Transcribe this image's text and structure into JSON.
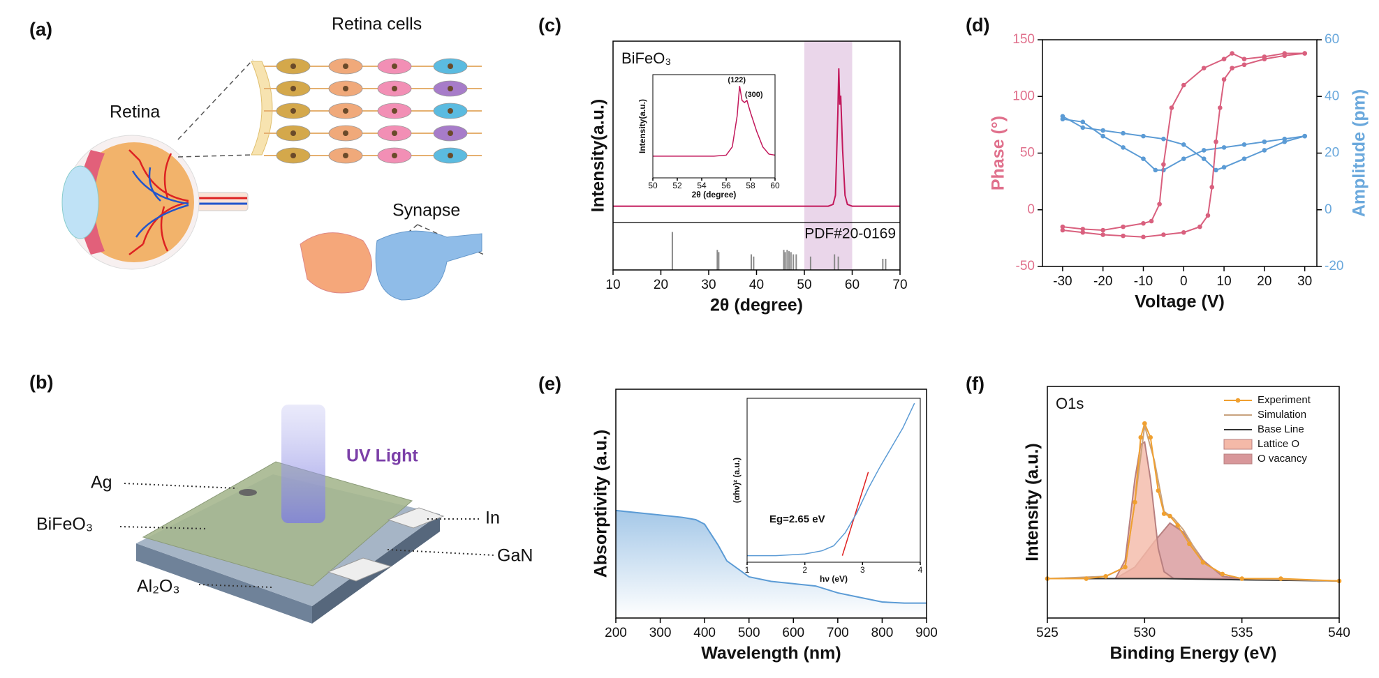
{
  "panel_a": {
    "label": "(a)",
    "retina_cells": "Retina cells",
    "retina": "Retina",
    "synapse": "Synapse"
  },
  "panel_b": {
    "label": "(b)",
    "uv_light": "UV Light",
    "ag": "Ag",
    "bifeo3": "BiFeO₃",
    "in": "In",
    "gan": "GaN",
    "al2o3": "Al₂O₃"
  },
  "chart_data": [
    {
      "type": "line",
      "panel_label": "(c)",
      "xlabel": "2θ (degree)",
      "ylabel": "Intensity(a.u.)",
      "xlim": [
        10,
        70
      ],
      "xticks": [
        10,
        20,
        30,
        40,
        50,
        60,
        70
      ],
      "ylim": [
        0,
        100
      ],
      "highlight": [
        50,
        60
      ],
      "highlight_color": "#ead6ea",
      "annotation": "BiFeO₃",
      "series": [
        {
          "color": "#c2185b",
          "x": [
            10,
            55,
            56,
            56.5,
            57,
            57.2,
            57.4,
            57.6,
            58,
            58.5,
            59,
            60,
            70
          ],
          "values": [
            9,
            9,
            10,
            15,
            60,
            85,
            65,
            70,
            40,
            15,
            10,
            9,
            9
          ]
        }
      ],
      "reference": {
        "label": "PDF#20-0169",
        "color": "#8a8a8a",
        "x": [
          22.4,
          31.8,
          32.1,
          38.9,
          39.4,
          45.7,
          46.0,
          46.4,
          46.8,
          47.2,
          47.7,
          48.3,
          51.3,
          56.3,
          57.1,
          66.4,
          67.0
        ],
        "values": [
          85,
          45,
          40,
          35,
          30,
          45,
          40,
          45,
          42,
          40,
          35,
          35,
          30,
          35,
          30,
          25,
          25
        ]
      },
      "inset": {
        "type": "line",
        "xlabel": "2θ (degree)",
        "ylabel": "Intensity(a.u.)",
        "xlim": [
          50,
          60
        ],
        "xticks": [
          50,
          52,
          54,
          56,
          58,
          60
        ],
        "ylim": [
          0,
          100
        ],
        "series": [
          {
            "color": "#c2185b",
            "x": [
              50,
              55,
              56,
              56.5,
              56.9,
              57.1,
              57.3,
              57.5,
              57.7,
              58,
              58.5,
              59,
              59.5,
              60
            ],
            "values": [
              21,
              21,
              22,
              30,
              60,
              89,
              75,
              73,
              75,
              63,
              45,
              30,
              23,
              22
            ]
          }
        ],
        "peak_labels": [
          {
            "label": "(122)",
            "x": 57.1
          },
          {
            "label": "(300)",
            "x": 57.7
          }
        ]
      }
    },
    {
      "type": "line",
      "panel_label": "(d)",
      "xlabel": "Voltage (V)",
      "ylabel": "Phase (°)",
      "y2label": "Amplitude (pm)",
      "ycolor": "#e0708c",
      "y2color": "#6aa8dc",
      "xlim": [
        -35,
        33
      ],
      "xticks": [
        -30,
        -20,
        -10,
        0,
        10,
        20,
        30
      ],
      "ylim": [
        -50,
        150
      ],
      "yticks": [
        -50,
        0,
        50,
        100,
        150
      ],
      "y2lim": [
        -20,
        60
      ],
      "y2ticks": [
        -20,
        0,
        20,
        40,
        60
      ],
      "series": [
        {
          "color": "#d9607e",
          "markers": true,
          "x": [
            -30,
            -25,
            -20,
            -15,
            -10,
            -5,
            0,
            4,
            6,
            7,
            8,
            9,
            10,
            12,
            15,
            20,
            25,
            30
          ],
          "values": [
            -18,
            -20,
            -22,
            -23,
            -24,
            -22,
            -20,
            -15,
            -5,
            20,
            60,
            90,
            115,
            125,
            128,
            133,
            136,
            138
          ]
        },
        {
          "color": "#d9607e",
          "markers": true,
          "x": [
            30,
            25,
            20,
            15,
            12,
            10,
            5,
            0,
            -3,
            -5,
            -6,
            -8,
            -10,
            -15,
            -20,
            -25,
            -30
          ],
          "values": [
            138,
            138,
            135,
            133,
            138,
            133,
            125,
            110,
            90,
            40,
            5,
            -10,
            -12,
            -15,
            -18,
            -17,
            -15
          ]
        },
        {
          "color": "#5b9bd5",
          "markers": true,
          "axis": "y2",
          "x": [
            -30,
            -25,
            -20,
            -15,
            -10,
            -7,
            -5,
            0,
            5,
            10,
            15,
            20,
            25,
            30
          ],
          "values": [
            32,
            31,
            26,
            22,
            18,
            14,
            14,
            18,
            21,
            22,
            23,
            24,
            25,
            26
          ]
        },
        {
          "color": "#5b9bd5",
          "markers": true,
          "axis": "y2",
          "x": [
            -30,
            -25,
            -20,
            -15,
            -10,
            -5,
            0,
            5,
            8,
            10,
            15,
            20,
            25,
            30
          ],
          "values": [
            33,
            29,
            28,
            27,
            26,
            25,
            23,
            18,
            14,
            15,
            18,
            21,
            24,
            26
          ]
        }
      ]
    },
    {
      "type": "line",
      "panel_label": "(e)",
      "xlabel": "Wavelength (nm)",
      "ylabel": "Absorptivity (a.u.)",
      "xlim": [
        200,
        900
      ],
      "xticks": [
        200,
        300,
        400,
        500,
        600,
        700,
        800,
        900
      ],
      "ylim": [
        0,
        100
      ],
      "series": [
        {
          "color": "#5b9bd5",
          "fill": "gradient",
          "x": [
            200,
            250,
            300,
            350,
            380,
            400,
            430,
            450,
            500,
            550,
            600,
            650,
            700,
            750,
            800,
            850,
            900
          ],
          "values": [
            47,
            46,
            45,
            44,
            43,
            41,
            32,
            25,
            18,
            16,
            15,
            14,
            11,
            9,
            7,
            6.5,
            6.5
          ]
        }
      ],
      "inset": {
        "type": "line",
        "xlabel": "hν (eV)",
        "ylabel": "(αhν)² (a.u.)",
        "xlim": [
          1,
          4
        ],
        "xticks": [
          1,
          2,
          3,
          4
        ],
        "ylim": [
          0,
          100
        ],
        "annotation": "Eg=2.65 eV",
        "series": [
          {
            "color": "#5b9bd5",
            "x": [
              1,
              1.5,
              2,
              2.3,
              2.5,
              2.7,
              2.9,
              3.1,
              3.3,
              3.5,
              3.7,
              3.9
            ],
            "values": [
              4,
              4,
              5,
              7,
              10,
              18,
              30,
              45,
              58,
              70,
              82,
              97
            ]
          },
          {
            "color": "#e02020",
            "x": [
              2.65,
              3.1
            ],
            "values": [
              4,
              55
            ]
          }
        ]
      }
    },
    {
      "type": "line",
      "panel_label": "(f)",
      "xlabel": "Binding Energy (eV)",
      "ylabel": "Intensity (a.u.)",
      "annotation": "O1s",
      "xlim": [
        525,
        540
      ],
      "xticks": [
        525,
        530,
        535,
        540
      ],
      "ylim": [
        0,
        100
      ],
      "legend": "upper right",
      "series": [
        {
          "name": "Experiment",
          "color": "#f0a030",
          "markers": true,
          "x": [
            525,
            527,
            528,
            529,
            529.5,
            529.8,
            530,
            530.3,
            530.7,
            531,
            531.3,
            531.7,
            532.3,
            533,
            534,
            535,
            537,
            540
          ],
          "values": [
            17,
            17,
            18,
            22,
            50,
            78,
            84,
            78,
            55,
            45,
            44,
            40,
            32,
            24,
            19,
            17,
            17,
            16
          ]
        },
        {
          "name": "Simulation",
          "color": "#c8a27e",
          "x": [
            525,
            528,
            529,
            529.5,
            530,
            530.5,
            531,
            531.5,
            532,
            533,
            534,
            535,
            540
          ],
          "values": [
            17,
            18,
            22,
            50,
            83,
            68,
            46,
            43,
            38,
            24,
            19,
            17,
            16
          ]
        },
        {
          "name": "Base Line",
          "color": "#333333",
          "x": [
            525,
            529,
            531,
            535,
            540
          ],
          "values": [
            17,
            17,
            17,
            16.5,
            16
          ]
        },
        {
          "name": "Lattice O",
          "color": "#f4b9a8",
          "fill": true,
          "x": [
            528.5,
            529,
            529.5,
            529.8,
            530,
            530.3,
            530.7,
            531,
            531.5
          ],
          "values": [
            17,
            25,
            60,
            75,
            76,
            60,
            30,
            20,
            17
          ]
        },
        {
          "name": "O vacancy",
          "color": "#d8979a",
          "fill": true,
          "x": [
            528.5,
            529.5,
            530.5,
            531.3,
            532,
            533,
            534,
            535
          ],
          "values": [
            17,
            22,
            33,
            41,
            37,
            25,
            18,
            17
          ]
        }
      ]
    }
  ]
}
